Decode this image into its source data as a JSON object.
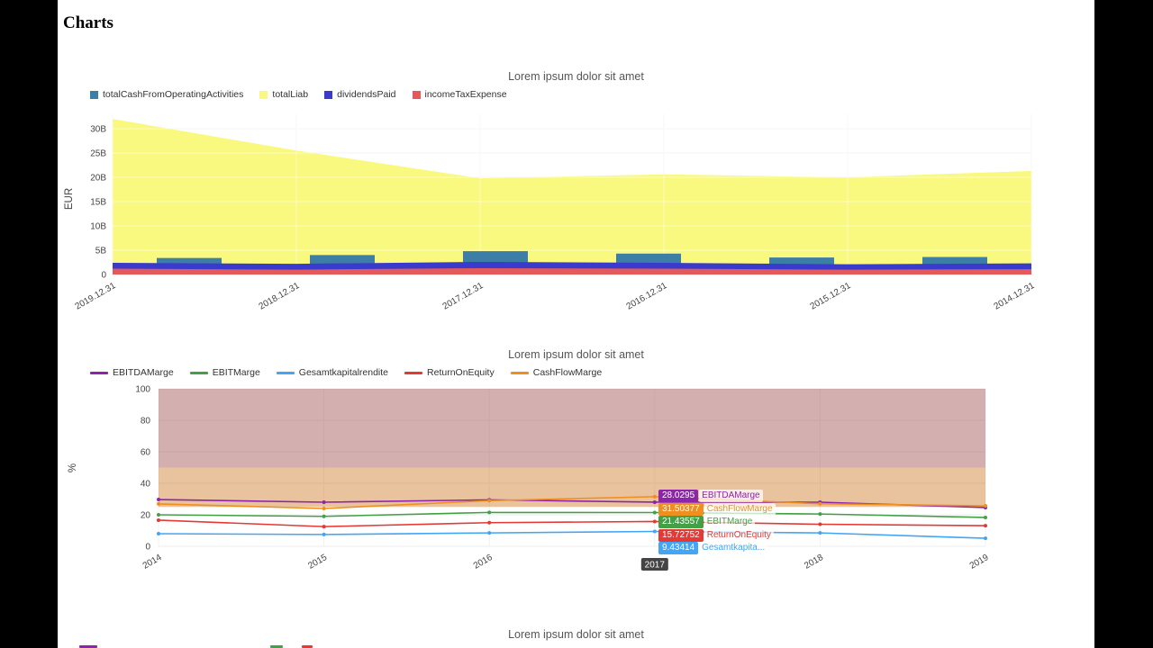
{
  "page": {
    "title": "Charts"
  },
  "chart_data": [
    {
      "type": "area+bar",
      "title": "Lorem ipsum dolor sit amet",
      "ylabel": "EUR",
      "categories": [
        "2019.12.31",
        "2018.12.31",
        "2017.12.31",
        "2016.12.31",
        "2015.12.31",
        "2014.12.31"
      ],
      "y_ticks": [
        "0",
        "5B",
        "10B",
        "15B",
        "20B",
        "25B",
        "30B"
      ],
      "ylim_billions": [
        0,
        33
      ],
      "grid": true,
      "legend_position": "top-left",
      "series": [
        {
          "name": "totalCashFromOperatingActivities",
          "type": "bar",
          "color": "#3d7ea6",
          "values_billions": [
            3.4,
            4.0,
            4.8,
            4.3,
            3.5,
            3.6
          ]
        },
        {
          "name": "totalLiab",
          "type": "area",
          "color": "#f9f97f",
          "values_billions": [
            32.0,
            25.5,
            19.8,
            20.6,
            20.0,
            21.3
          ]
        },
        {
          "name": "dividendsPaid",
          "type": "area",
          "color": "#3a3acc",
          "values_billions": [
            2.4,
            2.2,
            2.6,
            2.4,
            2.1,
            2.3
          ]
        },
        {
          "name": "incomeTaxExpense",
          "type": "area",
          "color": "#e4595c",
          "values_billions": [
            1.2,
            1.0,
            1.3,
            1.2,
            1.0,
            1.1
          ]
        }
      ]
    },
    {
      "type": "line",
      "title": "Lorem ipsum dolor sit amet",
      "ylabel": "%",
      "x": [
        2014,
        2015,
        2016,
        2017,
        2018,
        2019
      ],
      "y_ticks": [
        0,
        20,
        40,
        60,
        80,
        100
      ],
      "ylim": [
        0,
        100
      ],
      "grid": true,
      "legend_position": "top-left",
      "bands": [
        {
          "from": 50,
          "to": 100,
          "color": "#a85f5f",
          "opacity": 0.5
        },
        {
          "from": 25,
          "to": 50,
          "color": "#cc7a29",
          "opacity": 0.45
        }
      ],
      "series": [
        {
          "name": "EBITDAMarge",
          "color": "#8e24aa",
          "values": [
            29.7,
            28.0,
            29.5,
            28.0295,
            28.0,
            24.6
          ]
        },
        {
          "name": "EBITMarge",
          "color": "#43a047",
          "values": [
            20.0,
            19.0,
            21.5,
            21.43557,
            20.5,
            18.3
          ]
        },
        {
          "name": "Gesamtkapitalrendite",
          "color": "#42a5f5",
          "values": [
            8.0,
            7.5,
            8.5,
            9.43414,
            8.5,
            5.1
          ]
        },
        {
          "name": "ReturnOnEquity",
          "color": "#e53935",
          "values": [
            16.6,
            12.5,
            15.0,
            15.72752,
            14.0,
            13.1
          ]
        },
        {
          "name": "CashFlowMarge",
          "color": "#ef8f1f",
          "values": [
            26.9,
            24.0,
            29.0,
            31.50377,
            27.0,
            25.7
          ]
        }
      ],
      "tooltip": {
        "x": 2017,
        "x_label": "2017",
        "entries": [
          {
            "value": "28.0295",
            "label": "EBITDAMarge",
            "color": "#8e24aa"
          },
          {
            "value": "31.50377",
            "label": "CashFlowMarge",
            "color": "#ef8f1f"
          },
          {
            "value": "21.43557",
            "label": "EBITMarge",
            "color": "#43a047"
          },
          {
            "value": "15.72752",
            "label": "ReturnOnEquity",
            "color": "#e53935"
          },
          {
            "value": "9.43414",
            "label": "Gesamtkapita...",
            "color": "#42a5f5"
          }
        ]
      }
    },
    {
      "type": "line",
      "title": "Lorem ipsum dolor sit amet",
      "legend_marker_colors": [
        "#8e24aa",
        "#43a047",
        "#e53935"
      ]
    }
  ]
}
